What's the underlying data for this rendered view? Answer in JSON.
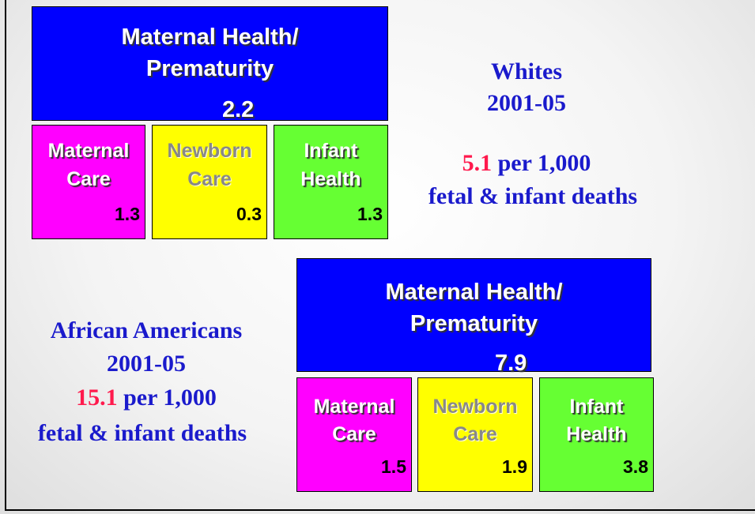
{
  "groups": [
    {
      "population": "Whites",
      "period": "2001-05",
      "rate": 5.1,
      "rate_unit": "per 1,000",
      "deaths_label": "fetal & infant deaths",
      "main": {
        "lines": [
          "Maternal Health/",
          "Prematurity"
        ],
        "value": 2.2
      },
      "parts": [
        {
          "lines": [
            "Maternal",
            "Care"
          ],
          "value": 1.3
        },
        {
          "lines": [
            "Newborn",
            "Care"
          ],
          "value": 0.3
        },
        {
          "lines": [
            "Infant",
            "Health"
          ],
          "value": 1.3
        }
      ]
    },
    {
      "population": "African Americans",
      "period": "2001-05",
      "rate": 15.1,
      "rate_unit": "per 1,000",
      "deaths_label": "fetal & infant deaths",
      "main": {
        "lines": [
          "Maternal Health/",
          "Prematurity"
        ],
        "value": 7.9
      },
      "parts": [
        {
          "lines": [
            "Maternal",
            "Care"
          ],
          "value": 1.5
        },
        {
          "lines": [
            "Newborn",
            "Care"
          ],
          "value": 1.9
        },
        {
          "lines": [
            "Infant",
            "Health"
          ],
          "value": 3.8
        }
      ]
    }
  ]
}
